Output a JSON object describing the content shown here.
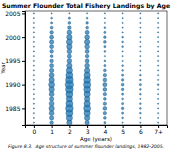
{
  "chart_data": {
    "type": "bubble",
    "title": "Summer Flounder Total Fishery Landings by Age",
    "xlabel": "Age (years)",
    "ylabel": "Year",
    "caption": "Figure 8.3.  Age structure of summer flounder landings, 1982-2005.",
    "x": [
      0,
      1,
      2,
      3,
      4,
      5,
      6,
      7
    ],
    "y": [
      1982,
      1983,
      1984,
      1985,
      1986,
      1987,
      1988,
      1989,
      1990,
      1991,
      1992,
      1993,
      1994,
      1995,
      1996,
      1997,
      1998,
      1999,
      2000,
      2001,
      2002,
      2003,
      2004,
      2005
    ],
    "sizes": [
      [
        1,
        1,
        1,
        1,
        1,
        1,
        1,
        1,
        1,
        1,
        1,
        1,
        1,
        1,
        1,
        1,
        1,
        1,
        1,
        1,
        1,
        1,
        1,
        1
      ],
      [
        8,
        12,
        15,
        18,
        15,
        12,
        15,
        18,
        22,
        18,
        15,
        12,
        10,
        8,
        5,
        8,
        10,
        12,
        10,
        8,
        5,
        3,
        2,
        1
      ],
      [
        18,
        24,
        30,
        36,
        30,
        24,
        30,
        36,
        44,
        36,
        30,
        24,
        18,
        14,
        10,
        14,
        18,
        22,
        18,
        14,
        8,
        5,
        3,
        1
      ],
      [
        12,
        18,
        24,
        30,
        24,
        18,
        24,
        28,
        32,
        28,
        24,
        18,
        14,
        10,
        8,
        10,
        14,
        18,
        14,
        10,
        5,
        4,
        2,
        1
      ],
      [
        3,
        5,
        7,
        9,
        7,
        5,
        7,
        9,
        11,
        9,
        7,
        5,
        3,
        2,
        1,
        2,
        3,
        5,
        4,
        3,
        2,
        1,
        1,
        1
      ],
      [
        1,
        2,
        3,
        4,
        3,
        2,
        3,
        4,
        5,
        4,
        3,
        2,
        2,
        1,
        1,
        1,
        2,
        2,
        2,
        1,
        1,
        1,
        1,
        1
      ],
      [
        1,
        1,
        2,
        2,
        2,
        1,
        2,
        2,
        3,
        2,
        2,
        1,
        1,
        1,
        1,
        1,
        1,
        1,
        1,
        1,
        1,
        1,
        1,
        1
      ],
      [
        1,
        1,
        1,
        1,
        1,
        1,
        1,
        1,
        2,
        1,
        1,
        1,
        1,
        1,
        1,
        1,
        1,
        1,
        1,
        1,
        1,
        1,
        1,
        1
      ]
    ],
    "xlim": [
      -0.5,
      7.5
    ],
    "xticks": [
      0,
      1,
      2,
      3,
      4,
      5,
      6,
      {
        "value": 7,
        "label": "7+"
      }
    ],
    "ylim": [
      1981.5,
      2005.5
    ],
    "yticks": [
      1985,
      1990,
      1995,
      2000,
      2005
    ]
  }
}
